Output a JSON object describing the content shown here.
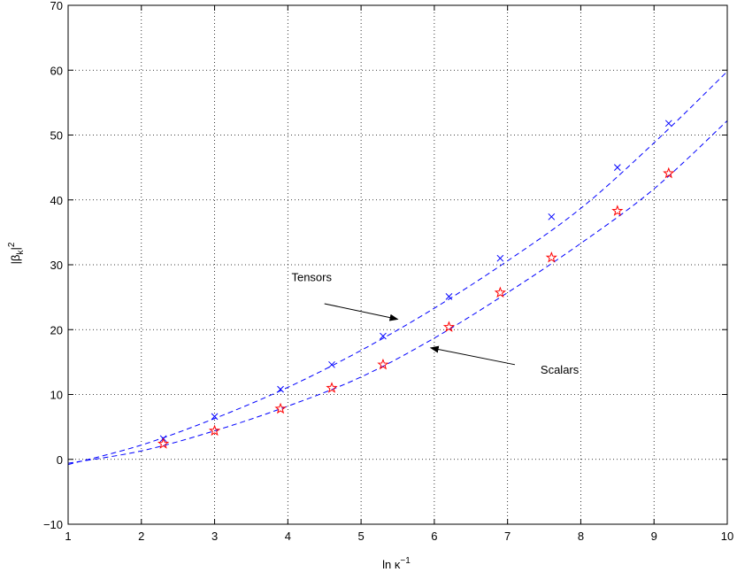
{
  "chart_data": {
    "type": "scatter",
    "title": "",
    "xlabel_main": "ln κ",
    "xlabel_sup": "−1",
    "ylabel_main": "|β",
    "ylabel_sub": "k",
    "ylabel_bar": "|",
    "ylabel_sup": "2",
    "xlim": [
      1,
      10
    ],
    "ylim": [
      -10,
      70
    ],
    "xticks": [
      1,
      2,
      3,
      4,
      5,
      6,
      7,
      8,
      9,
      10
    ],
    "yticks": [
      -10,
      0,
      10,
      20,
      30,
      40,
      50,
      60,
      70
    ],
    "grid": true,
    "series": [
      {
        "name": "Tensors",
        "marker": "x",
        "color": "#0000ff",
        "x": [
          2.3,
          3.0,
          3.9,
          4.6,
          5.3,
          6.2,
          6.9,
          7.6,
          8.5,
          9.2
        ],
        "y": [
          3.2,
          6.6,
          10.8,
          14.6,
          19.0,
          25.1,
          31.0,
          37.4,
          45.0,
          51.8
        ]
      },
      {
        "name": "Scalars",
        "marker": "star",
        "color": "#ff0000",
        "x": [
          2.3,
          3.0,
          3.9,
          4.6,
          5.3,
          6.2,
          6.9,
          7.6,
          8.5,
          9.2
        ],
        "y": [
          2.4,
          4.4,
          7.8,
          11.0,
          14.6,
          20.4,
          25.7,
          31.1,
          38.3,
          44.1
        ]
      }
    ],
    "fits": [
      {
        "color": "#0000ff",
        "x": [
          1.0,
          2.0,
          3.0,
          4.0,
          5.0,
          6.0,
          7.0,
          8.0,
          9.0,
          10.0
        ],
        "y": [
          -0.8,
          2.2,
          6.3,
          11.1,
          16.8,
          23.3,
          30.6,
          38.7,
          48.8,
          59.8
        ]
      },
      {
        "color": "#0000ff",
        "x": [
          1.0,
          2.0,
          3.0,
          4.0,
          5.0,
          6.0,
          7.0,
          8.0,
          9.0,
          10.0
        ],
        "y": [
          -0.6,
          1.3,
          4.4,
          8.2,
          12.7,
          18.7,
          25.7,
          33.3,
          41.7,
          52.2
        ]
      }
    ],
    "annotations": [
      {
        "text": "Tensors",
        "text_x": 4.05,
        "text_y": 27.5,
        "arrow_from": [
          4.5,
          24.0
        ],
        "arrow_to": [
          5.5,
          21.6
        ]
      },
      {
        "text": "Scalars",
        "text_x": 7.45,
        "text_y": 13.2,
        "arrow_from": [
          7.1,
          14.6
        ],
        "arrow_to": [
          5.95,
          17.2
        ]
      }
    ]
  }
}
